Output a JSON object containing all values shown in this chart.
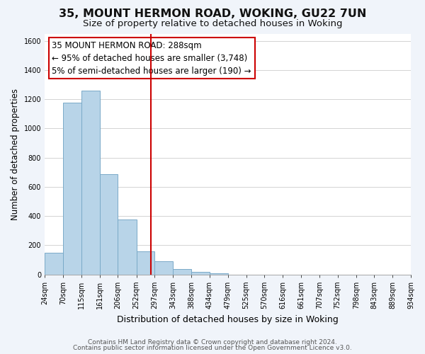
{
  "title_line1": "35, MOUNT HERMON ROAD, WOKING, GU22 7UN",
  "title_line2": "Size of property relative to detached houses in Woking",
  "xlabel": "Distribution of detached houses by size in Woking",
  "ylabel": "Number of detached properties",
  "bin_edges": [
    24,
    70,
    115,
    161,
    206,
    252,
    297,
    343,
    388,
    434,
    479,
    525,
    570,
    616,
    661,
    707,
    752,
    798,
    843,
    889,
    934
  ],
  "bar_heights": [
    150,
    1175,
    1260,
    685,
    375,
    160,
    90,
    35,
    20,
    10,
    0,
    0,
    0,
    0,
    0,
    0,
    0,
    0,
    0,
    0
  ],
  "bar_color": "#b8d4e8",
  "bar_edgecolor": "#7aaac8",
  "vline_x": 288,
  "vline_color": "#cc0000",
  "ylim": [
    0,
    1650
  ],
  "yticks": [
    0,
    200,
    400,
    600,
    800,
    1000,
    1200,
    1400,
    1600
  ],
  "annotation_text_line1": "35 MOUNT HERMON ROAD: 288sqm",
  "annotation_text_line2": "← 95% of detached houses are smaller (3,748)",
  "annotation_text_line3": "5% of semi-detached houses are larger (190) →",
  "grid_color": "#cccccc",
  "plot_bg_color": "#ffffff",
  "fig_bg_color": "#f0f4fa",
  "footer_line1": "Contains HM Land Registry data © Crown copyright and database right 2024.",
  "footer_line2": "Contains public sector information licensed under the Open Government Licence v3.0.",
  "title_fontsize": 11.5,
  "subtitle_fontsize": 9.5,
  "xlabel_fontsize": 9,
  "ylabel_fontsize": 8.5,
  "tick_fontsize": 7,
  "annotation_fontsize": 8.5,
  "footer_fontsize": 6.5
}
